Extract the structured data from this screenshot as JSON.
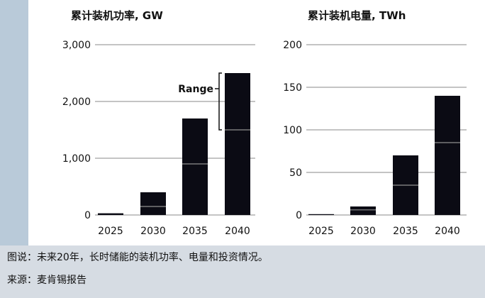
{
  "caption": {
    "line1": "图说：未来20年，长时储能的装机功率、电量和投资情况。",
    "line2": "来源：麦肯锡报告"
  },
  "chart_data": [
    {
      "type": "bar",
      "title": "累计装机功率, GW",
      "categories": [
        "2025",
        "2030",
        "2035",
        "2040"
      ],
      "values": [
        30,
        400,
        1700,
        2500
      ],
      "range_low": [
        30,
        150,
        900,
        1500
      ],
      "yticks": [
        0,
        1000,
        2000,
        3000
      ],
      "ytick_labels": [
        "0",
        "1,000",
        "2,000",
        "3,000"
      ],
      "ylim": [
        0,
        3000
      ],
      "annotation": "Range",
      "colors": {
        "bar": "#0b0b14",
        "grid": "#888888",
        "split": "#8f8f8f"
      }
    },
    {
      "type": "bar",
      "title": "累计装机电量, TWh",
      "categories": [
        "2025",
        "2030",
        "2035",
        "2040"
      ],
      "values": [
        1,
        10,
        70,
        140
      ],
      "range_low": [
        1,
        6,
        35,
        85
      ],
      "yticks": [
        0,
        50,
        100,
        150,
        200
      ],
      "ytick_labels": [
        "0",
        "50",
        "100",
        "150",
        "200"
      ],
      "ylim": [
        0,
        200
      ],
      "colors": {
        "bar": "#0b0b14",
        "grid": "#888888",
        "split": "#8f8f8f"
      }
    }
  ]
}
